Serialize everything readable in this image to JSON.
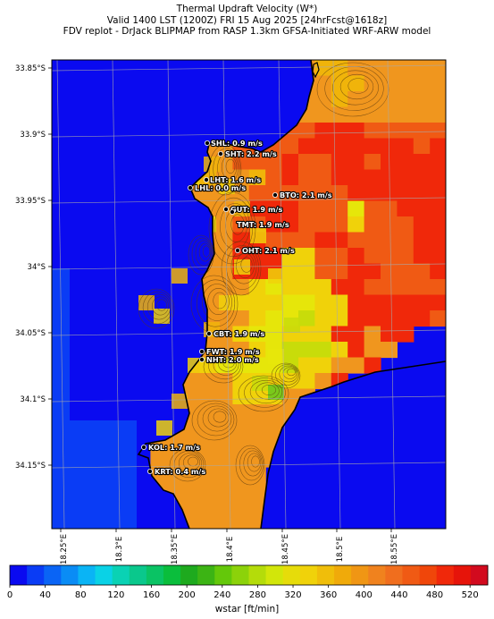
{
  "title": {
    "line1": "Thermal Updraft Velocity (W*)",
    "line2": "Valid 1400 LST (1200Z) FRI 15 Aug 2025 [24hrFcst@1618z]",
    "line3": "FDV replot - DrJack BLIPMAP from RASP 1.3km GFSA-Initiated WRF-ARW model"
  },
  "axes": {
    "lat_ticks": [
      "33.85°S",
      "33.9°S",
      "33.95°S",
      "34°S",
      "34.05°S",
      "34.1°S",
      "34.15°S"
    ],
    "lon_ticks": [
      "18.25°E",
      "18.3°E",
      "18.35°E",
      "18.4°E",
      "18.45°E",
      "18.5°E",
      "18.55°E"
    ]
  },
  "stations": [
    {
      "code": "SHL",
      "value": "0.9 m/s",
      "label": "SHL: 0.9 m/s"
    },
    {
      "code": "SHT",
      "value": "2.2 m/s",
      "label": "SHT: 2.2 m/s"
    },
    {
      "code": "LHT",
      "value": "1.6 m/s",
      "label": "LHT: 1.6 m/s"
    },
    {
      "code": "LHL",
      "value": "0.0 m/s",
      "label": "LHL: 0.0 m/s"
    },
    {
      "code": "BTO",
      "value": "2.1 m/s",
      "label": "BTO: 2.1 m/s"
    },
    {
      "code": "GUT",
      "value": "1.9 m/s",
      "label": "GUT: 1.9 m/s"
    },
    {
      "code": "TMT",
      "value": "1.9 m/s",
      "label": "TMT: 1.9 m/s"
    },
    {
      "code": "OHT",
      "value": "2.1 m/s",
      "label": "OHT: 2.1 m/s"
    },
    {
      "code": "CBT",
      "value": "1.9 m/s",
      "label": "CBT: 1.9 m/s"
    },
    {
      "code": "FWT",
      "value": "1.9 m/s",
      "label": "FWT: 1.9 m/s"
    },
    {
      "code": "NHT",
      "value": "2.0 m/s",
      "label": "NHT: 2.0 m/s"
    },
    {
      "code": "KOL",
      "value": "1.7 m/s",
      "label": "KOL: 1.7 m/s"
    },
    {
      "code": "KRT",
      "value": "0.4 m/s",
      "label": "KRT: 0.4 m/s"
    }
  ],
  "colorbar": {
    "label": "wstar [ft/min]",
    "ticks": [
      "0",
      "40",
      "80",
      "120",
      "160",
      "200",
      "240",
      "280",
      "320",
      "360",
      "400",
      "440",
      "480",
      "520"
    ],
    "colors": [
      "#0a0af0",
      "#0a3cf5",
      "#0a64f5",
      "#0a8cf5",
      "#0ab4f5",
      "#0ad2e6",
      "#0ad2b4",
      "#0ac88c",
      "#0ac364",
      "#0abe3c",
      "#1eaa1e",
      "#3cb414",
      "#64c80a",
      "#8cd20a",
      "#b4dc0a",
      "#d2e60a",
      "#e6dc0a",
      "#f0d20a",
      "#f0be0a",
      "#f0aa0a",
      "#f09614",
      "#f0821e",
      "#f06e1e",
      "#f05a14",
      "#f0460a",
      "#f0280a",
      "#e6140a",
      "#d20a1e"
    ]
  },
  "field_colors": {
    "ocean": "#0a0af0",
    "red": "#f0280a",
    "orange_red": "#f05a14",
    "orange": "#f0961e",
    "amber": "#f0b40a",
    "gold": "#f0d20a",
    "yellow": "#e6e60a",
    "lime": "#c8dc0a",
    "green": "#64c81e"
  }
}
